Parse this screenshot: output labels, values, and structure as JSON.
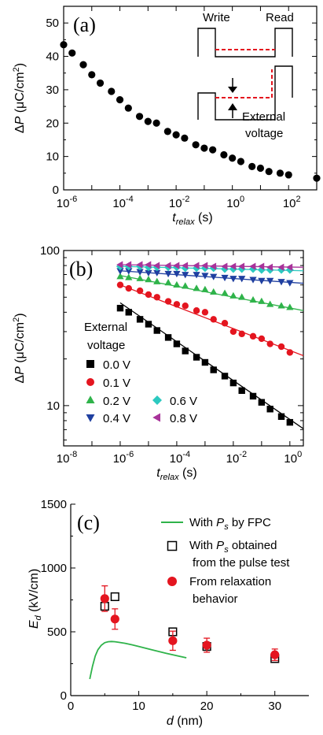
{
  "chart_data": [
    {
      "panel": "(a)",
      "type": "scatter",
      "x_scale": "log",
      "xlabel": "t_relax (s)",
      "xlabel_parts": {
        "base": "t",
        "sub": "relax",
        "unit": "(s)"
      },
      "ylabel": "ΔP (μC/cm²)",
      "ylabel_parts": {
        "delta": "Δ",
        "var": "P",
        "unit": "(μC/cm",
        "sup": "2",
        "close": ")"
      },
      "xlim": [
        1e-06,
        1000
      ],
      "ylim": [
        0,
        55
      ],
      "xticks": [
        {
          "value": 1e-06,
          "base": "10",
          "exp": "-6"
        },
        {
          "value": 0.0001,
          "base": "10",
          "exp": "-4"
        },
        {
          "value": 0.01,
          "base": "10",
          "exp": "-2"
        },
        {
          "value": 1,
          "base": "10",
          "exp": "0"
        },
        {
          "value": 100,
          "base": "10",
          "exp": "2"
        }
      ],
      "yticks": [
        0,
        10,
        20,
        30,
        40,
        50
      ],
      "series": [
        {
          "color": "#000000",
          "marker": "circle",
          "x": [
            1e-06,
            2e-06,
            5e-06,
            1e-05,
            2e-05,
            5e-05,
            0.0001,
            0.0002,
            0.0005,
            0.001,
            0.002,
            0.005,
            0.01,
            0.02,
            0.05,
            0.1,
            0.2,
            0.5,
            1,
            2,
            5,
            10,
            20,
            50,
            100,
            1000
          ],
          "y": [
            43.5,
            41,
            37.5,
            34.5,
            32,
            29.5,
            27,
            24.5,
            22,
            20.5,
            20,
            17.5,
            16.5,
            15.5,
            13.5,
            12.5,
            12,
            10.5,
            9.5,
            8.5,
            7,
            6.5,
            5.5,
            5,
            4.5,
            3.5
          ]
        }
      ],
      "inset": {
        "write_label": "Write",
        "read_label": "Read",
        "external_label": "External",
        "voltage_label": "voltage"
      }
    },
    {
      "panel": "(b)",
      "type": "scatter",
      "x_scale": "log",
      "y_scale": "log",
      "xlabel": "t_relax (s)",
      "xlabel_parts": {
        "base": "t",
        "sub": "relax",
        "unit": "(s)"
      },
      "ylabel": "ΔP (μC/cm²)",
      "ylabel_parts": {
        "delta": "Δ",
        "var": "P",
        "unit": "(μC/cm",
        "sup": "2",
        "close": ")"
      },
      "xlim": [
        1e-08,
        3
      ],
      "ylim": [
        5.5,
        100
      ],
      "xticks": [
        {
          "value": 1e-08,
          "base": "10",
          "exp": "-8"
        },
        {
          "value": 1e-06,
          "base": "10",
          "exp": "-6"
        },
        {
          "value": 0.0001,
          "base": "10",
          "exp": "-4"
        },
        {
          "value": 0.01,
          "base": "10",
          "exp": "-2"
        },
        {
          "value": 1,
          "base": "10",
          "exp": "0"
        }
      ],
      "yticks": [
        10,
        100
      ],
      "legend_title": [
        "External",
        "voltage"
      ],
      "series": [
        {
          "name": "0.0 V",
          "color": "#000000",
          "marker": "square",
          "x": [
            1e-06,
            2e-06,
            5e-06,
            1e-05,
            2e-05,
            5e-05,
            0.0001,
            0.0002,
            0.0005,
            0.001,
            0.002,
            0.005,
            0.01,
            0.02,
            0.05,
            0.1,
            0.2,
            0.5,
            1
          ],
          "y": [
            42.5,
            40,
            36,
            33.5,
            30.5,
            27.5,
            25,
            22.5,
            20.5,
            19,
            17,
            15.5,
            14,
            12.5,
            11.5,
            10.5,
            9.5,
            8.5,
            7.8
          ],
          "fit": [
            [
              1e-06,
              46
            ],
            [
              3,
              7.1
            ]
          ]
        },
        {
          "name": "0.1 V",
          "color": "#e4151f",
          "marker": "circle",
          "x": [
            1e-06,
            2e-06,
            5e-06,
            1e-05,
            2e-05,
            5e-05,
            0.0001,
            0.0002,
            0.0005,
            0.001,
            0.002,
            0.005,
            0.01,
            0.02,
            0.05,
            0.1,
            0.2,
            0.5,
            1
          ],
          "y": [
            60,
            57,
            55,
            52,
            50,
            47,
            45,
            44,
            41,
            40,
            36,
            34,
            30,
            29,
            28,
            27,
            25,
            24,
            22
          ],
          "fit": [
            [
              1e-06,
              60
            ],
            [
              3,
              21
            ]
          ]
        },
        {
          "name": "0.2 V",
          "color": "#2fb34a",
          "marker": "triangle-up",
          "x": [
            1e-06,
            2e-06,
            5e-06,
            1e-05,
            2e-05,
            5e-05,
            0.0001,
            0.0002,
            0.0005,
            0.001,
            0.002,
            0.005,
            0.01,
            0.02,
            0.05,
            0.1,
            0.2,
            0.5,
            1
          ],
          "y": [
            68,
            67,
            66,
            65,
            63,
            62,
            60,
            59,
            57,
            56,
            54,
            53,
            51,
            50,
            48,
            47,
            45,
            44,
            43
          ],
          "fit": [
            [
              1e-06,
              69
            ],
            [
              3,
              41
            ]
          ]
        },
        {
          "name": "0.4 V",
          "color": "#1f3fa0",
          "marker": "triangle-down",
          "x": [
            1e-06,
            2e-06,
            5e-06,
            1e-05,
            2e-05,
            5e-05,
            0.0001,
            0.0002,
            0.0005,
            0.001,
            0.002,
            0.005,
            0.01,
            0.02,
            0.05,
            0.1,
            0.2,
            0.5,
            1
          ],
          "y": [
            74,
            74,
            73,
            72,
            72,
            71,
            71,
            70,
            70,
            69,
            68,
            67,
            66,
            66,
            65,
            64,
            64,
            63,
            62
          ],
          "fit": [
            [
              1e-06,
              74
            ],
            [
              3,
              61.5
            ]
          ]
        },
        {
          "name": "0.6 V",
          "color": "#2cc9c0",
          "marker": "diamond",
          "x": [
            1e-06,
            2e-06,
            5e-06,
            1e-05,
            2e-05,
            5e-05,
            0.0001,
            0.0002,
            0.0005,
            0.001,
            0.002,
            0.005,
            0.01,
            0.02,
            0.05,
            0.1,
            0.2,
            0.5,
            1
          ],
          "y": [
            79,
            79,
            79,
            78,
            78,
            78,
            78,
            77,
            77,
            77,
            77,
            76,
            76,
            76,
            76,
            75,
            75,
            75,
            75
          ],
          "fit": [
            [
              1e-06,
              79
            ],
            [
              3,
              74
            ]
          ]
        },
        {
          "name": "0.8 V",
          "color": "#a8339a",
          "marker": "triangle-left",
          "x": [
            1e-06,
            2e-06,
            5e-06,
            1e-05,
            2e-05,
            5e-05,
            0.0001,
            0.0002,
            0.0005,
            0.001,
            0.002,
            0.005,
            0.01,
            0.02,
            0.05,
            0.1,
            0.2,
            0.5,
            1
          ],
          "y": [
            81,
            81,
            81,
            81,
            80,
            80,
            80,
            80,
            80,
            80,
            79,
            79,
            79,
            79,
            79,
            79,
            78,
            78,
            78
          ],
          "fit": [
            [
              1e-06,
              81
            ],
            [
              3,
              78
            ]
          ]
        }
      ]
    },
    {
      "panel": "(c)",
      "type": "scatter",
      "xlabel": "d (nm)",
      "xlabel_parts": {
        "var": "d",
        "unit": "(nm)"
      },
      "ylabel": "E_d (kV/cm)",
      "ylabel_parts": {
        "base": "E",
        "sub": "d",
        "unit": "(kV/cm)"
      },
      "xlim": [
        0,
        35
      ],
      "ylim": [
        0,
        1500
      ],
      "xticks": [
        0,
        10,
        20,
        30
      ],
      "yticks": [
        0,
        500,
        1000,
        1500
      ],
      "legend": [
        {
          "kind": "line",
          "color": "#2fb34a",
          "text_before": "With ",
          "var": "P",
          "sub": "s",
          "text_after": " by FPC"
        },
        {
          "kind": "open-square",
          "color": "#000000",
          "text_before": "With ",
          "var": "P",
          "sub": "s",
          "text_after": " obtained",
          "line2": "from the pulse test"
        },
        {
          "kind": "filled-circle",
          "color": "#e4151f",
          "text": "From relaxation",
          "line2": "behavior"
        }
      ],
      "fpc_curve": {
        "x": [
          2.8,
          3.2,
          3.6,
          4.0,
          4.5,
          5.0,
          5.5,
          6.0,
          6.5,
          7.0,
          8.0,
          9.0,
          10.0,
          12.0,
          14.0,
          16.0,
          17.0
        ],
        "y": [
          130,
          230,
          310,
          360,
          395,
          415,
          422,
          424,
          422,
          418,
          410,
          398,
          385,
          358,
          332,
          308,
          296
        ]
      },
      "pulse_test": {
        "x": [
          5,
          6.5,
          15,
          20,
          30
        ],
        "y": [
          700,
          775,
          500,
          385,
          290
        ]
      },
      "relaxation": {
        "x": [
          5,
          6.5,
          15,
          20,
          30
        ],
        "y": [
          760,
          600,
          430,
          395,
          320
        ],
        "err": [
          100,
          80,
          75,
          55,
          45
        ]
      }
    }
  ]
}
